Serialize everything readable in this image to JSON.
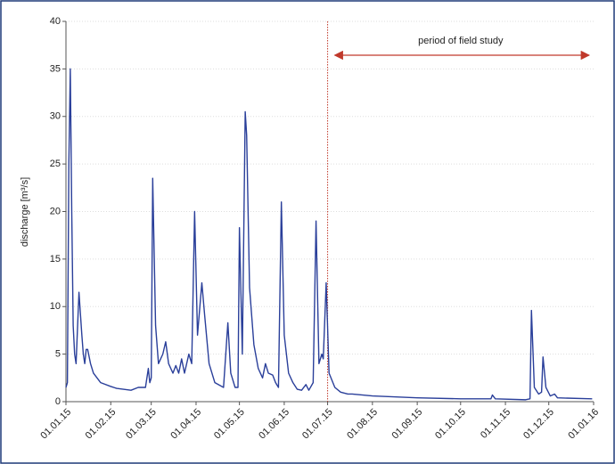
{
  "chart_data": {
    "type": "line",
    "ylabel": "discharge [m³/s]",
    "annotation": "period of field study",
    "color": "#2a3f9a",
    "grid": true,
    "x": [
      "01.01.15",
      "02.01.15",
      "03.01.15",
      "04.01.15",
      "05.01.15",
      "06.01.15",
      "07.01.15",
      "08.01.15",
      "10.01.15",
      "12.01.15",
      "13.01.15",
      "14.01.15",
      "15.01.15",
      "16.01.15",
      "18.01.15",
      "20.01.15",
      "25.01.15",
      "01.02.15",
      "05.02.15",
      "15.02.15",
      "20.02.15",
      "25.02.15",
      "27.02.15",
      "28.02.15",
      "01.03.15",
      "02.03.15",
      "04.03.15",
      "06.03.15",
      "09.03.15",
      "11.03.15",
      "13.03.15",
      "16.03.15",
      "18.03.15",
      "20.03.15",
      "22.03.15",
      "24.03.15",
      "27.03.15",
      "29.03.15",
      "31.03.15",
      "02.04.15",
      "05.04.15",
      "07.04.15",
      "10.04.15",
      "14.04.15",
      "20.04.15",
      "23.04.15",
      "25.04.15",
      "28.04.15",
      "30.04.15",
      "01.05.15",
      "03.05.15",
      "05.05.15",
      "06.05.15",
      "08.05.15",
      "11.05.15",
      "14.05.15",
      "17.05.15",
      "19.05.15",
      "21.05.15",
      "24.05.15",
      "26.05.15",
      "28.05.15",
      "30.05.15",
      "01.06.15",
      "04.06.15",
      "07.06.15",
      "10.06.15",
      "13.06.15",
      "16.06.15",
      "18.06.15",
      "21.06.15",
      "23.06.15",
      "25.06.15",
      "27.06.15",
      "28.06.15",
      "30.06.15",
      "02.07.15",
      "06.07.15",
      "10.07.15",
      "15.07.15",
      "18.07.15",
      "01.08.15",
      "01.09.15",
      "01.10.15",
      "22.10.15",
      "23.10.15",
      "25.10.15",
      "15.11.15",
      "18.11.15",
      "19.11.15",
      "21.11.15",
      "24.11.15",
      "26.11.15",
      "27.11.15",
      "29.11.15",
      "02.12.15",
      "05.12.15",
      "07.12.15",
      "31.12.15"
    ],
    "values": [
      1.5,
      2,
      25,
      35,
      20,
      8,
      5,
      4,
      11.5,
      7,
      5,
      4,
      5.5,
      5.5,
      4,
      3,
      2,
      1.6,
      1.4,
      1.2,
      1.5,
      1.5,
      3.5,
      2,
      2.5,
      23.5,
      8,
      4,
      5,
      6.3,
      4,
      3,
      3.8,
      3,
      4.5,
      3,
      5,
      4,
      20,
      7,
      12.5,
      9,
      4,
      2,
      1.5,
      8.3,
      3,
      1.5,
      1.5,
      18.3,
      5,
      30.5,
      28,
      12,
      6,
      3.5,
      2.5,
      4,
      3,
      2.8,
      2,
      1.5,
      21,
      7,
      3,
      2,
      1.3,
      1.2,
      1.8,
      1.2,
      2,
      19,
      4,
      5,
      4.5,
      12.5,
      3,
      1.5,
      1,
      0.8,
      0.8,
      0.6,
      0.4,
      0.3,
      0.3,
      0.7,
      0.3,
      0.2,
      0.3,
      9.6,
      1.5,
      0.8,
      1,
      4.7,
      1.5,
      0.6,
      0.8,
      0.4,
      0.3
    ],
    "xlim": [
      "01.01.15",
      "01.01.16"
    ],
    "xticks": [
      "01.01.15",
      "01.02.15",
      "01.03.15",
      "01.04.15",
      "01.05.15",
      "01.06.15",
      "01.07.15",
      "01.08.15",
      "01.09.15",
      "01.10.15",
      "01.11.15",
      "01.12.15",
      "01.01.16"
    ],
    "ylim": [
      0,
      40
    ],
    "yticks": [
      0,
      5,
      10,
      15,
      20,
      25,
      30,
      35,
      40
    ]
  }
}
